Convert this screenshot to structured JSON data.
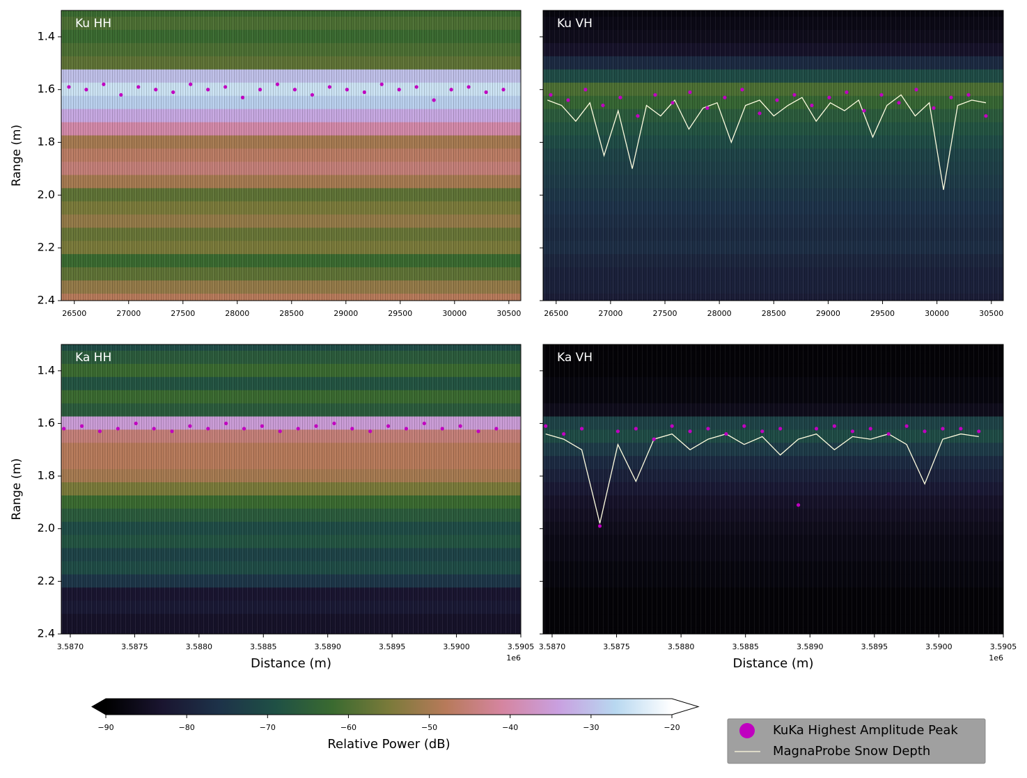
{
  "chart_data": [
    {
      "type": "radargram",
      "title": "Ku HH",
      "ylabel": "Range (m)",
      "xlim": [
        26380,
        30610
      ],
      "xticks": [
        26500,
        27000,
        27500,
        28000,
        28500,
        29000,
        29500,
        30000,
        30500
      ],
      "ylim": [
        2.4,
        1.3
      ],
      "yticks": [
        1.4,
        1.6,
        1.8,
        {
          "value": 2,
          "label": "2.0"
        },
        2.2,
        2.4
      ],
      "ytick_labels": true,
      "power": {
        "range": [
          1.3,
          1.35,
          1.4,
          1.45,
          1.5,
          1.55,
          1.6,
          1.65,
          1.7,
          1.75,
          1.8,
          1.85,
          1.9,
          1.95,
          2.0,
          2.05,
          2.1,
          2.15,
          2.2,
          2.25,
          2.3,
          2.35,
          2.4
        ],
        "db": [
          -62,
          -60,
          -62,
          -60,
          -58,
          -30,
          -25,
          -28,
          -33,
          -40,
          -50,
          -47,
          -45,
          -50,
          -58,
          -55,
          -52,
          -57,
          -55,
          -62,
          -58,
          -52,
          -48
        ]
      },
      "peaks": {
        "x": [
          26450,
          26610,
          26770,
          26930,
          27090,
          27250,
          27410,
          27570,
          27730,
          27890,
          28050,
          28210,
          28370,
          28530,
          28690,
          28850,
          29010,
          29170,
          29330,
          29490,
          29650,
          29810,
          29970,
          30130,
          30290,
          30450
        ],
        "y": [
          1.59,
          1.6,
          1.58,
          1.62,
          1.59,
          1.6,
          1.61,
          1.58,
          1.6,
          1.59,
          1.63,
          1.6,
          1.58,
          1.6,
          1.62,
          1.59,
          1.6,
          1.61,
          1.58,
          1.6,
          1.59,
          1.64,
          1.6,
          1.59,
          1.61,
          1.6
        ]
      }
    },
    {
      "type": "radargram",
      "title": "Ku VH",
      "xlim": [
        26380,
        30610
      ],
      "xticks": [
        26500,
        27000,
        27500,
        28000,
        28500,
        29000,
        29500,
        30000,
        30500
      ],
      "ylim": [
        2.4,
        1.3
      ],
      "yticks": [
        1.4,
        1.6,
        1.8,
        2,
        2.2,
        2.4
      ],
      "ytick_labels": false,
      "power": {
        "range": [
          1.3,
          1.35,
          1.4,
          1.45,
          1.5,
          1.55,
          1.6,
          1.65,
          1.7,
          1.75,
          1.8,
          1.85,
          1.9,
          1.95,
          2.0,
          2.05,
          2.1,
          2.15,
          2.2,
          2.25,
          2.3,
          2.35,
          2.4
        ],
        "db": [
          -88,
          -87,
          -86,
          -84,
          -78,
          -70,
          -60,
          -63,
          -66,
          -68,
          -70,
          -72,
          -73,
          -74,
          -75,
          -76,
          -77,
          -78,
          -77,
          -79,
          -80,
          -80,
          -81
        ]
      },
      "peaks": {
        "x": [
          26450,
          26610,
          26770,
          26930,
          27090,
          27250,
          27410,
          27570,
          27730,
          27890,
          28050,
          28210,
          28370,
          28530,
          28690,
          28850,
          29010,
          29170,
          29330,
          29490,
          29650,
          29810,
          29970,
          30130,
          30290,
          30450
        ],
        "y": [
          1.62,
          1.64,
          1.6,
          1.66,
          1.63,
          1.7,
          1.62,
          1.65,
          1.61,
          1.67,
          1.63,
          1.6,
          1.69,
          1.64,
          1.62,
          1.66,
          1.63,
          1.61,
          1.68,
          1.62,
          1.65,
          1.6,
          1.67,
          1.63,
          1.62,
          1.7
        ]
      },
      "snow_depth": {
        "x": [
          26420,
          26550,
          26680,
          26810,
          26940,
          27070,
          27200,
          27330,
          27460,
          27590,
          27720,
          27850,
          27980,
          28110,
          28240,
          28370,
          28500,
          28630,
          28760,
          28890,
          29020,
          29150,
          29280,
          29410,
          29540,
          29670,
          29800,
          29930,
          30060,
          30190,
          30320,
          30450
        ],
        "y": [
          1.64,
          1.66,
          1.72,
          1.65,
          1.85,
          1.68,
          1.9,
          1.66,
          1.7,
          1.64,
          1.75,
          1.67,
          1.65,
          1.8,
          1.66,
          1.64,
          1.7,
          1.66,
          1.63,
          1.72,
          1.65,
          1.68,
          1.64,
          1.78,
          1.66,
          1.62,
          1.7,
          1.65,
          1.98,
          1.66,
          1.64,
          1.65
        ]
      }
    },
    {
      "type": "radargram",
      "title": "Ka HH",
      "ylabel": "Range (m)",
      "xlabel": "Distance (m)",
      "offset_text": "1e6",
      "xlim": [
        3.58693,
        3.5905
      ],
      "xticks": [
        {
          "value": 3.587,
          "label": "3.5870"
        },
        3.5875,
        {
          "value": 3.588,
          "label": "3.5880"
        },
        3.5885,
        {
          "value": 3.589,
          "label": "3.5890"
        },
        3.5895,
        {
          "value": 3.59,
          "label": "3.5900"
        },
        3.5905
      ],
      "ylim": [
        2.4,
        1.3
      ],
      "yticks": [
        1.4,
        1.6,
        1.8,
        {
          "value": 2,
          "label": "2.0"
        },
        2.2,
        2.4
      ],
      "ytick_labels": true,
      "power": {
        "range": [
          1.3,
          1.35,
          1.4,
          1.45,
          1.5,
          1.55,
          1.6,
          1.65,
          1.7,
          1.75,
          1.8,
          1.85,
          1.9,
          1.95,
          2.0,
          2.05,
          2.1,
          2.15,
          2.2,
          2.25,
          2.3,
          2.35,
          2.4
        ],
        "db": [
          -70,
          -66,
          -62,
          -68,
          -62,
          -66,
          -35,
          -45,
          -48,
          -48,
          -50,
          -55,
          -62,
          -66,
          -70,
          -68,
          -72,
          -70,
          -75,
          -83,
          -82,
          -84,
          -84
        ]
      },
      "peaks": {
        "x": [
          3.58695,
          3.58709,
          3.58723,
          3.58737,
          3.58751,
          3.58765,
          3.58779,
          3.58793,
          3.58807,
          3.58821,
          3.58835,
          3.58849,
          3.58863,
          3.58877,
          3.58891,
          3.58905,
          3.58919,
          3.58933,
          3.58947,
          3.58961,
          3.58975,
          3.58989,
          3.59003,
          3.59017,
          3.59031
        ],
        "y": [
          1.62,
          1.61,
          1.63,
          1.62,
          1.6,
          1.62,
          1.63,
          1.61,
          1.62,
          1.6,
          1.62,
          1.61,
          1.63,
          1.62,
          1.61,
          1.6,
          1.62,
          1.63,
          1.61,
          1.62,
          1.6,
          1.62,
          1.61,
          1.63,
          1.62
        ]
      }
    },
    {
      "type": "radargram",
      "title": "Ka VH",
      "xlabel": "Distance (m)",
      "offset_text": "1e6",
      "xlim": [
        3.58693,
        3.5905
      ],
      "xticks": [
        {
          "value": 3.587,
          "label": "3.5870"
        },
        3.5875,
        {
          "value": 3.588,
          "label": "3.5880"
        },
        3.5885,
        {
          "value": 3.589,
          "label": "3.5890"
        },
        3.5895,
        {
          "value": 3.59,
          "label": "3.5900"
        },
        3.5905
      ],
      "ylim": [
        2.4,
        1.3
      ],
      "yticks": [
        1.4,
        1.6,
        1.8,
        2,
        2.2,
        2.4
      ],
      "ytick_labels": false,
      "power": {
        "range": [
          1.3,
          1.35,
          1.4,
          1.45,
          1.5,
          1.55,
          1.6,
          1.65,
          1.7,
          1.75,
          1.8,
          1.85,
          1.9,
          1.95,
          2.0,
          2.05,
          2.1,
          2.15,
          2.2,
          2.25,
          2.3,
          2.35,
          2.4
        ],
        "db": [
          -89,
          -89,
          -89,
          -88,
          -88,
          -86,
          -72,
          -70,
          -74,
          -78,
          -80,
          -82,
          -84,
          -85,
          -86,
          -87,
          -87,
          -88,
          -88,
          -89,
          -89,
          -89,
          -89
        ]
      },
      "peaks": {
        "x": [
          3.58695,
          3.58709,
          3.58723,
          3.58737,
          3.58751,
          3.58765,
          3.58779,
          3.58793,
          3.58807,
          3.58821,
          3.58835,
          3.58849,
          3.58863,
          3.58877,
          3.58891,
          3.58905,
          3.58919,
          3.58933,
          3.58947,
          3.58961,
          3.58975,
          3.58989,
          3.59003,
          3.59017,
          3.59031
        ],
        "y": [
          1.61,
          1.64,
          1.62,
          1.99,
          1.63,
          1.62,
          1.66,
          1.61,
          1.63,
          1.62,
          1.64,
          1.61,
          1.63,
          1.62,
          1.91,
          1.62,
          1.61,
          1.63,
          1.62,
          1.64,
          1.61,
          1.63,
          1.62,
          1.62,
          1.63
        ]
      },
      "snow_depth": {
        "x": [
          3.58695,
          3.58709,
          3.58723,
          3.58737,
          3.58751,
          3.58765,
          3.58779,
          3.58793,
          3.58807,
          3.58821,
          3.58835,
          3.58849,
          3.58863,
          3.58877,
          3.58891,
          3.58905,
          3.58919,
          3.58933,
          3.58947,
          3.58961,
          3.58975,
          3.58989,
          3.59003,
          3.59017,
          3.59031
        ],
        "y": [
          1.64,
          1.66,
          1.7,
          1.98,
          1.68,
          1.82,
          1.66,
          1.64,
          1.7,
          1.66,
          1.64,
          1.68,
          1.65,
          1.72,
          1.66,
          1.64,
          1.7,
          1.65,
          1.66,
          1.64,
          1.68,
          1.83,
          1.66,
          1.64,
          1.65
        ]
      }
    }
  ],
  "colorbar": {
    "label": "Relative Power (dB)",
    "vmin": -90,
    "vmax": -20,
    "ticks": [
      {
        "value": -90,
        "label": "−90"
      },
      {
        "value": -80,
        "label": "−80"
      },
      {
        "value": -70,
        "label": "−70"
      },
      {
        "value": -60,
        "label": "−60"
      },
      {
        "value": -50,
        "label": "−50"
      },
      {
        "value": -40,
        "label": "−40"
      },
      {
        "value": -30,
        "label": "−30"
      },
      {
        "value": -20,
        "label": "−20"
      }
    ],
    "cmap": [
      "#000000",
      "#1a1530",
      "#1d3249",
      "#1f5045",
      "#3a6a30",
      "#7a7a3a",
      "#b77a5a",
      "#d585a0",
      "#c9a0e0",
      "#b8d8f0",
      "#ffffff"
    ]
  },
  "legend": [
    {
      "name": "KuKa Highest Amplitude Peak",
      "color": "#c000c0",
      "marker": "circle"
    },
    {
      "name": "MagnaProbe Snow Depth",
      "color": "#fffde0",
      "marker": "line"
    }
  ]
}
